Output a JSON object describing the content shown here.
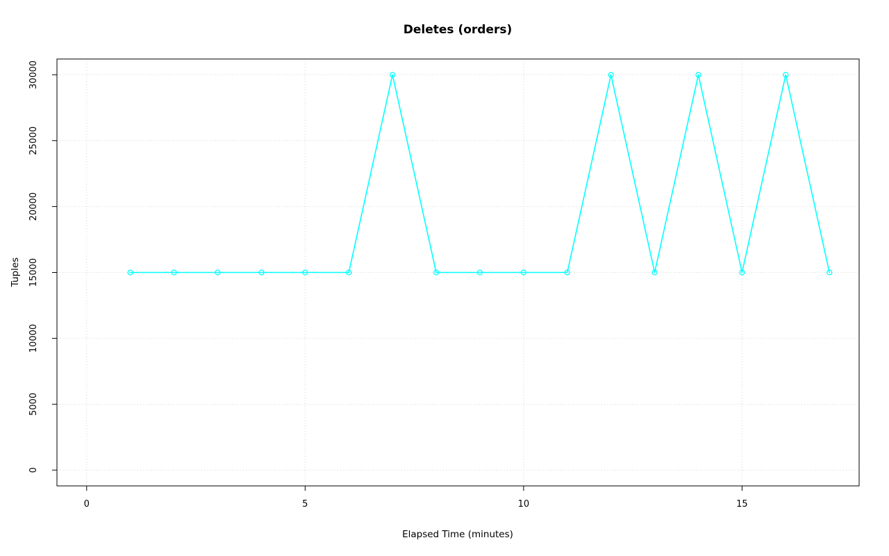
{
  "chart_data": {
    "type": "line",
    "title": "Deletes (orders)",
    "xlabel": "Elapsed Time (minutes)",
    "ylabel": "Tuples",
    "series": [
      {
        "name": "deletes-orders",
        "color": "#00ffff",
        "marker": "open-circle",
        "x": [
          1,
          2,
          3,
          4,
          5,
          6,
          7,
          8,
          9,
          10,
          11,
          12,
          13,
          14,
          15,
          16,
          17
        ],
        "y": [
          15000,
          15000,
          15000,
          15000,
          15000,
          15000,
          30000,
          15000,
          15000,
          15000,
          15000,
          30000,
          15000,
          30000,
          15000,
          30000,
          15000
        ]
      }
    ],
    "xlim": [
      0,
      17
    ],
    "ylim": [
      0,
      30000
    ],
    "xticks": [
      0,
      5,
      10,
      15
    ],
    "yticks": [
      0,
      5000,
      10000,
      15000,
      20000,
      25000,
      30000
    ],
    "grid": true,
    "grid_color": "#d4d4d4",
    "box_color": "#000000",
    "legend": "none"
  }
}
